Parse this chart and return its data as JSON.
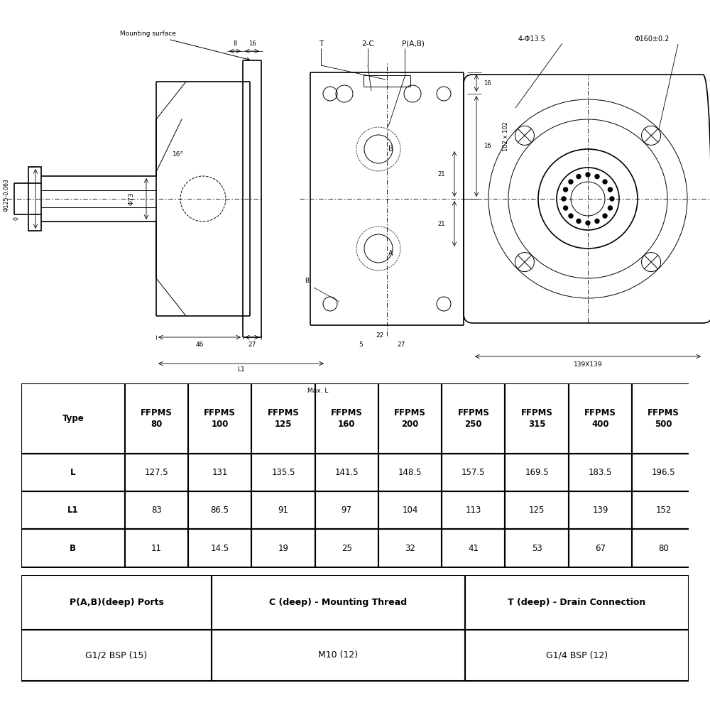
{
  "bg_color": "#ffffff",
  "main_table": {
    "headers": [
      "Type",
      "FFPMS\n80",
      "FFPMS\n100",
      "FFPMS\n125",
      "FFPMS\n160",
      "FFPMS\n200",
      "FFPMS\n250",
      "FFPMS\n315",
      "FFPMS\n400",
      "FFPMS\n500"
    ],
    "rows": [
      [
        "L",
        "127.5",
        "131",
        "135.5",
        "141.5",
        "148.5",
        "157.5",
        "169.5",
        "183.5",
        "196.5"
      ],
      [
        "L1",
        "83",
        "86.5",
        "91",
        "97",
        "104",
        "113",
        "125",
        "139",
        "152"
      ],
      [
        "B",
        "11",
        "14.5",
        "19",
        "25",
        "32",
        "41",
        "53",
        "67",
        "80"
      ]
    ]
  },
  "port_table": {
    "headers": [
      "P(A,B)(deep) Ports",
      "C (deep) - Mounting Thread",
      "T (deep) - Drain Connection"
    ],
    "rows": [
      [
        "G1/2 BSP (15)",
        "M10 (12)",
        "G1/4 BSP (12)"
      ]
    ]
  }
}
